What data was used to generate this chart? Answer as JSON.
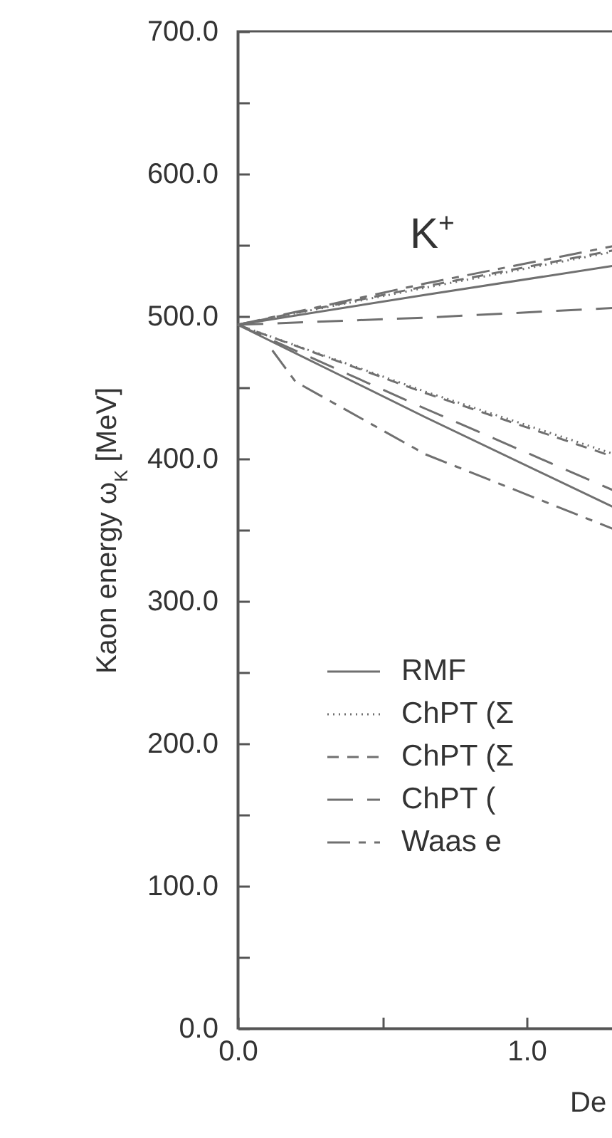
{
  "chart_data": {
    "type": "line",
    "ylabel": "Kaon energy ω$_{K}$ [MeV]",
    "xlabel": "De",
    "xlim": [
      0,
      1.32
    ],
    "ylim": [
      0,
      700
    ],
    "xticks": [
      {
        "value": 0,
        "label": "0.0"
      },
      {
        "value": 0.5,
        "label": null
      },
      {
        "value": 1,
        "label": "1.0"
      }
    ],
    "yticks": [
      {
        "value": 0,
        "label": "0.0"
      },
      {
        "value": 50,
        "label": null
      },
      {
        "value": 100,
        "label": "100.0"
      },
      {
        "value": 150,
        "label": null
      },
      {
        "value": 200,
        "label": "200.0"
      },
      {
        "value": 250,
        "label": null
      },
      {
        "value": 300,
        "label": "300.0"
      },
      {
        "value": 350,
        "label": null
      },
      {
        "value": 400,
        "label": "400.0"
      },
      {
        "value": 450,
        "label": null
      },
      {
        "value": 500,
        "label": "500.0"
      },
      {
        "value": 550,
        "label": null
      },
      {
        "value": 600,
        "label": "600.0"
      },
      {
        "value": 650,
        "label": null
      },
      {
        "value": 700,
        "label": "700.0"
      }
    ],
    "grid": false,
    "legend": "bottom left",
    "marker": "none",
    "annotations": [
      "K$^{+}$"
    ],
    "series": [
      {
        "name": "RMF",
        "color": "#707070",
        "line_style": "solid",
        "x": [
          0,
          0.65,
          1.32
        ],
        "values": [
          494,
          515,
          536
        ]
      },
      {
        "name": "ChPT (Σ",
        "color": "#707070",
        "line_style": "dotted",
        "x": [
          0,
          0.65,
          1.32
        ],
        "values": [
          494,
          520,
          546
        ]
      },
      {
        "name": "ChPT (Σ",
        "color": "#707070",
        "line_style": "dashed",
        "x": [
          0,
          0.65,
          1.32
        ],
        "values": [
          494,
          521,
          547
        ]
      },
      {
        "name": "ChPT (",
        "color": "#707070",
        "line_style": "longdash",
        "x": [
          0,
          0.65,
          1.32
        ],
        "values": [
          494,
          499,
          506
        ]
      },
      {
        "name": "Waas e",
        "color": "#707070",
        "line_style": "dashdot",
        "x": [
          0,
          0.65,
          1.32
        ],
        "values": [
          494,
          523,
          550
        ]
      },
      {
        "color": "#707070",
        "line_style": "solid",
        "x": [
          0,
          0.3,
          0.65,
          1.32
        ],
        "values": [
          494,
          464,
          429,
          364
        ]
      },
      {
        "color": "#707070",
        "line_style": "dotted",
        "x": [
          0,
          0.65,
          1.32
        ],
        "values": [
          494,
          447,
          402
        ]
      },
      {
        "color": "#707070",
        "line_style": "dashed",
        "x": [
          0,
          0.65,
          1.32
        ],
        "values": [
          494,
          446,
          400
        ]
      },
      {
        "color": "#707070",
        "line_style": "longdash",
        "x": [
          0,
          0.65,
          1.32
        ],
        "values": [
          494,
          435,
          376
        ]
      },
      {
        "color": "#707070",
        "line_style": "dashdot",
        "x": [
          0.12,
          0.2,
          0.65,
          1.32
        ],
        "values": [
          476,
          454,
          403,
          349
        ]
      }
    ]
  }
}
